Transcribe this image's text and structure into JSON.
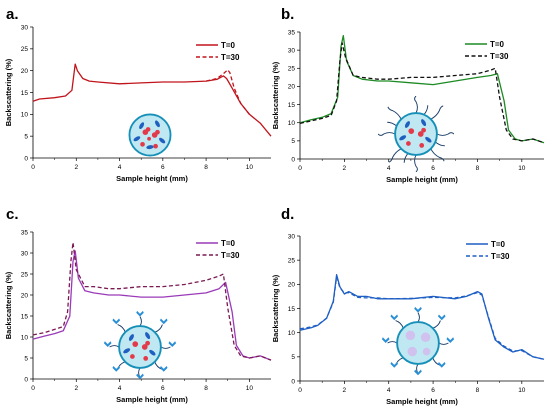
{
  "chart_data": [
    {
      "type": "line",
      "panel": "a.",
      "xlabel": "Sample height (mm)",
      "ylabel": "Backscattering (%)",
      "xlim": [
        0,
        11
      ],
      "ylim": [
        0,
        30
      ],
      "xticks": [
        0,
        2,
        4,
        6,
        8,
        10
      ],
      "yticks": [
        0,
        5,
        10,
        15,
        20,
        25,
        30
      ],
      "grid": false,
      "legend_position": "top-right",
      "inset": "plain",
      "series": [
        {
          "name": "T=0",
          "color": "#c0141c",
          "dash": "solid",
          "x": [
            0,
            0.3,
            1.0,
            1.5,
            1.8,
            1.95,
            2.05,
            2.3,
            2.6,
            3.0,
            4.0,
            5.0,
            6.0,
            7.0,
            8.0,
            8.5,
            8.8,
            8.95,
            9.2,
            9.6,
            10.0,
            10.5,
            11.0
          ],
          "y": [
            13,
            13.5,
            13.8,
            14.2,
            15.5,
            21.5,
            20.0,
            18.2,
            17.6,
            17.4,
            17.0,
            17.2,
            17.4,
            17.4,
            17.6,
            18.0,
            18.8,
            18.2,
            16.0,
            12.5,
            10.0,
            8.0,
            5.0
          ]
        },
        {
          "name": "T=30",
          "color": "#c0141c",
          "dash": "dashed",
          "x": [
            8.0,
            8.5,
            8.8,
            9.0,
            9.1,
            9.3,
            9.6,
            10.0
          ],
          "y": [
            17.6,
            18.2,
            19.3,
            20.2,
            19.5,
            16.0,
            12.5,
            10.0
          ]
        }
      ]
    },
    {
      "type": "line",
      "panel": "b.",
      "xlabel": "Sample height (mm)",
      "ylabel": "Backscattering (%)",
      "xlim": [
        0,
        11
      ],
      "ylim": [
        0,
        35
      ],
      "xticks": [
        0,
        2,
        4,
        6,
        8,
        10
      ],
      "yticks": [
        0,
        5,
        10,
        15,
        20,
        25,
        30,
        35
      ],
      "grid": false,
      "legend_position": "top-right",
      "inset": "hairy",
      "series": [
        {
          "name": "T=0",
          "color": "#1d8a23",
          "dash": "solid",
          "x": [
            0,
            0.5,
            1.0,
            1.4,
            1.7,
            1.85,
            1.95,
            2.1,
            2.4,
            2.8,
            3.5,
            4.0,
            5.0,
            6.0,
            7.0,
            8.0,
            8.6,
            8.9,
            9.2,
            9.4,
            9.7,
            10.0,
            10.5,
            11.0
          ],
          "y": [
            10,
            10.8,
            11.5,
            12.5,
            17,
            31,
            34,
            27,
            23,
            22,
            21.5,
            21.5,
            21.0,
            20.5,
            21.5,
            22.5,
            23.0,
            23.5,
            16,
            8,
            5.5,
            5.0,
            5.5,
            4.5
          ]
        },
        {
          "name": "T=30",
          "color": "#111111",
          "dash": "dashed",
          "x": [
            0,
            0.5,
            1.0,
            1.4,
            1.65,
            1.8,
            1.9,
            2.05,
            2.4,
            2.8,
            3.5,
            4.0,
            5.0,
            6.0,
            7.0,
            8.0,
            8.6,
            8.8,
            9.0,
            9.3,
            9.6,
            10.0,
            10.5,
            11.0
          ],
          "y": [
            9.8,
            10.5,
            11.2,
            12.0,
            16,
            27,
            32,
            28,
            23,
            22.5,
            22.0,
            22.0,
            22.5,
            22.5,
            23.0,
            23.5,
            24.5,
            25.0,
            17,
            8,
            5.5,
            5.0,
            5.5,
            4.5
          ]
        }
      ]
    },
    {
      "type": "line",
      "panel": "c.",
      "xlabel": "Sample height (mm)",
      "ylabel": "Backscattering (%)",
      "xlim": [
        0,
        11
      ],
      "ylim": [
        0,
        35
      ],
      "xticks": [
        0,
        2,
        4,
        6,
        8,
        10
      ],
      "yticks": [
        0,
        5,
        10,
        15,
        20,
        25,
        30,
        35
      ],
      "grid": false,
      "legend_position": "top-right",
      "inset": "ligand",
      "series": [
        {
          "name": "T=0",
          "color": "#9a3ab8",
          "dash": "solid",
          "x": [
            0,
            0.5,
            1.0,
            1.4,
            1.7,
            1.85,
            1.95,
            2.1,
            2.4,
            2.8,
            3.5,
            4.0,
            5.0,
            6.0,
            7.0,
            8.0,
            8.6,
            8.9,
            9.2,
            9.4,
            9.7,
            10.0,
            10.5,
            11.0
          ],
          "y": [
            9.5,
            10.2,
            10.8,
            11.5,
            15,
            28,
            30.5,
            24,
            21,
            20.5,
            20.0,
            20.0,
            19.5,
            19.5,
            20.0,
            20.5,
            21.5,
            23.0,
            16,
            8,
            5.5,
            5.0,
            5.5,
            4.5
          ]
        },
        {
          "name": "T=30",
          "color": "#7a1a52",
          "dash": "dashed",
          "x": [
            0,
            0.5,
            1.0,
            1.4,
            1.6,
            1.75,
            1.85,
            2.0,
            2.4,
            2.8,
            3.5,
            4.0,
            5.0,
            6.0,
            7.0,
            8.0,
            8.6,
            8.8,
            9.0,
            9.3,
            9.6,
            10.0,
            10.5,
            11.0
          ],
          "y": [
            10.5,
            11.0,
            11.8,
            12.5,
            16,
            28,
            32.5,
            26,
            22,
            22.0,
            21.5,
            21.5,
            22.0,
            22.0,
            22.5,
            23.5,
            24.5,
            25.0,
            17,
            8,
            5.5,
            5.0,
            5.5,
            4.5
          ]
        }
      ]
    },
    {
      "type": "line",
      "panel": "d.",
      "xlabel": "Sample height (mm)",
      "ylabel": "Backscattering (%)",
      "xlim": [
        0,
        11
      ],
      "ylim": [
        0,
        30
      ],
      "xticks": [
        0,
        2,
        4,
        6,
        8,
        10
      ],
      "yticks": [
        0,
        5,
        10,
        15,
        20,
        25,
        30
      ],
      "grid": false,
      "legend_position": "top-right",
      "inset": "empty",
      "series": [
        {
          "name": "T=0",
          "color": "#1e5fc4",
          "dash": "solid",
          "x": [
            0,
            0.5,
            0.8,
            1.2,
            1.5,
            1.65,
            1.8,
            2.0,
            2.2,
            2.6,
            3.0,
            3.5,
            4.0,
            5.0,
            6.0,
            7.0,
            7.5,
            8.0,
            8.2,
            8.5,
            8.8,
            9.2,
            9.6,
            10.0,
            10.5,
            11.0
          ],
          "y": [
            10.5,
            11.0,
            11.5,
            13.0,
            16.5,
            22,
            19.5,
            18.0,
            18.5,
            17.5,
            17.5,
            17.0,
            17.0,
            17.0,
            17.5,
            17.0,
            17.5,
            18.5,
            18.0,
            13.0,
            8.5,
            7.0,
            6.0,
            6.5,
            5.0,
            4.5
          ]
        },
        {
          "name": "T=30",
          "color": "#1e5fc4",
          "dash": "dashed",
          "x": [
            0,
            0.5,
            0.8,
            1.2,
            1.5,
            1.65,
            1.8,
            2.0,
            2.2,
            2.6,
            3.0,
            3.5,
            4.0,
            5.0,
            6.0,
            7.0,
            7.5,
            8.0,
            8.2,
            8.5,
            8.8,
            9.2,
            9.6,
            10.0,
            10.5,
            11.0
          ],
          "y": [
            10.8,
            11.2,
            11.6,
            13.0,
            16.3,
            21.5,
            19.3,
            18.2,
            18.3,
            17.3,
            17.2,
            17.2,
            17.0,
            17.1,
            17.3,
            17.2,
            17.6,
            18.3,
            17.8,
            13.2,
            8.8,
            7.2,
            6.2,
            6.3,
            5.0,
            4.5
          ]
        }
      ]
    }
  ]
}
